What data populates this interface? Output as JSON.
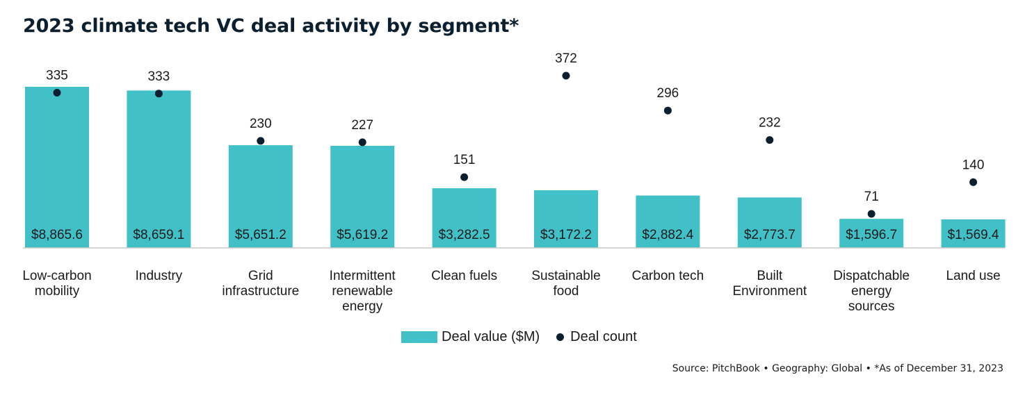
{
  "title": "2023 climate tech VC deal activity by segment*",
  "legend": {
    "bar_label": "Deal value ($M)",
    "dot_label": "Deal count"
  },
  "source": "Source: PitchBook • Geography: Global • *As of December 31, 2023",
  "colors": {
    "bar": "#41c0c7",
    "dot": "#0b1f2e",
    "axis": "#c8c8c8",
    "title": "#0b1f2e"
  },
  "chart_data": {
    "type": "bar",
    "title": "2023 climate tech VC deal activity by segment*",
    "categories": [
      [
        "Low-carbon",
        "mobility"
      ],
      [
        "Industry"
      ],
      [
        "Grid",
        "infrastructure"
      ],
      [
        "Intermittent",
        "renewable",
        "energy"
      ],
      [
        "Clean fuels"
      ],
      [
        "Sustainable",
        "food"
      ],
      [
        "Carbon tech"
      ],
      [
        "Built",
        "Environment"
      ],
      [
        "Dispatchable",
        "energy",
        "sources"
      ],
      [
        "Land use"
      ]
    ],
    "series": [
      {
        "name": "Deal value ($M)",
        "type": "bar",
        "values": [
          8865.6,
          8659.1,
          5651.2,
          5619.2,
          3282.5,
          3172.2,
          2882.4,
          2773.7,
          1596.7,
          1569.4
        ],
        "labels": [
          "$8,865.6",
          "$8,659.1",
          "$5,651.2",
          "$5,619.2",
          "$3,282.5",
          "$3,172.2",
          "$2,882.4",
          "$2,773.7",
          "$1,596.7",
          "$1,569.4"
        ]
      },
      {
        "name": "Deal count",
        "type": "scatter",
        "values": [
          335,
          333,
          230,
          227,
          151,
          372,
          296,
          232,
          71,
          140
        ]
      }
    ],
    "grid": false,
    "legend_position": "bottom-center"
  }
}
